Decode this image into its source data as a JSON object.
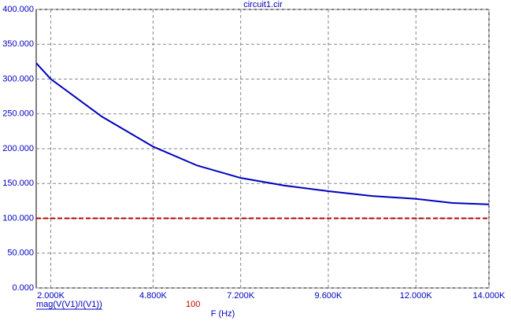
{
  "chart_data": {
    "type": "line",
    "title": "circuit1.cir",
    "x_label": "F (Hz)",
    "x": [
      1600,
      2000,
      3400,
      4800,
      6000,
      7200,
      8400,
      9600,
      10800,
      12000,
      13000,
      14000
    ],
    "series": [
      {
        "name": "mag(V(V1)/I(V1))",
        "color": "#0000c0",
        "values": [
          323,
          300,
          246,
          203,
          176,
          158,
          147,
          139,
          132,
          128,
          122,
          120
        ]
      },
      {
        "name": "100",
        "color": "#c00000",
        "dashed": true,
        "values": [
          100,
          100,
          100,
          100,
          100,
          100,
          100,
          100,
          100,
          100,
          100,
          100
        ]
      }
    ],
    "xlim": [
      1600,
      14000
    ],
    "xticks": [
      {
        "value": 2000,
        "label": "2.000K"
      },
      {
        "value": 4800,
        "label": "4.800K"
      },
      {
        "value": 7200,
        "label": "7.200K"
      },
      {
        "value": 9600,
        "label": "9.600K"
      },
      {
        "value": 12000,
        "label": "12.000K"
      },
      {
        "value": 14000,
        "label": "14.000K"
      }
    ],
    "ylim": [
      0,
      400
    ],
    "yticks": [
      {
        "value": 0,
        "label": "0.000"
      },
      {
        "value": 50,
        "label": "50.000"
      },
      {
        "value": 100,
        "label": "100.000"
      },
      {
        "value": 150,
        "label": "150.000"
      },
      {
        "value": 200,
        "label": "200.000"
      },
      {
        "value": 250,
        "label": "250.000"
      },
      {
        "value": 300,
        "label": "300.000"
      },
      {
        "value": 350,
        "label": "350.000"
      },
      {
        "value": 400,
        "label": "400.000"
      }
    ],
    "grid": true
  }
}
